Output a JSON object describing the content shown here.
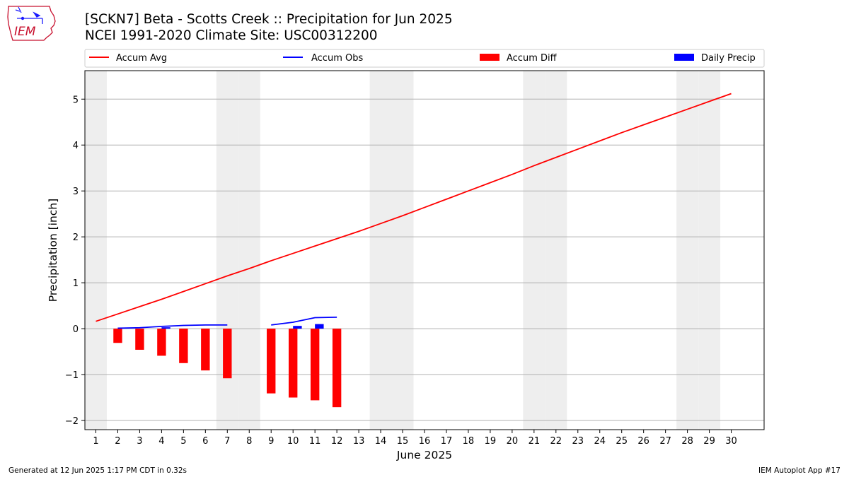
{
  "title_line1": "[SCKN7] Beta - Scotts Creek :: Precipitation for Jun 2025",
  "title_line2": "NCEI 1991-2020 Climate Site: USC00312200",
  "logo_text": "IEM",
  "footer_left": "Generated at 12 Jun 2025 1:17 PM CDT in 0.32s",
  "footer_right": "IEM Autoplot App #17",
  "colors": {
    "accum_avg": "#ff0000",
    "accum_obs": "#0000ff",
    "accum_diff": "#ff0000",
    "daily_precip": "#0000ff",
    "weekend_band": "#eeeeee",
    "grid": "#b0b0b0"
  },
  "chart_data": {
    "type": "bar",
    "xlabel": "June 2025",
    "ylabel": "Precipitation [inch]",
    "xlim": [
      0.5,
      31.5
    ],
    "ylim": [
      -2.2,
      5.62
    ],
    "yticks": [
      -2,
      -1,
      0,
      1,
      2,
      3,
      4,
      5
    ],
    "ytick_labels": [
      "−2",
      "−1",
      "0",
      "1",
      "2",
      "3",
      "4",
      "5"
    ],
    "days": [
      1,
      2,
      3,
      4,
      5,
      6,
      7,
      8,
      9,
      10,
      11,
      12,
      13,
      14,
      15,
      16,
      17,
      18,
      19,
      20,
      21,
      22,
      23,
      24,
      25,
      26,
      27,
      28,
      29,
      30
    ],
    "grid": true,
    "legend_position": "top",
    "weekend_days": [
      1,
      7,
      8,
      14,
      15,
      21,
      22,
      28,
      29
    ],
    "series": [
      {
        "name": "Accum Avg",
        "kind": "line",
        "x": [
          1,
          2,
          3,
          4,
          5,
          6,
          7,
          8,
          9,
          10,
          11,
          12,
          13,
          14,
          15,
          16,
          17,
          18,
          19,
          20,
          21,
          22,
          23,
          24,
          25,
          26,
          27,
          28,
          29,
          30
        ],
        "values": [
          0.16,
          0.32,
          0.48,
          0.64,
          0.81,
          0.98,
          1.15,
          1.31,
          1.48,
          1.64,
          1.8,
          1.96,
          2.12,
          2.29,
          2.46,
          2.64,
          2.82,
          3.0,
          3.18,
          3.36,
          3.55,
          3.73,
          3.91,
          4.09,
          4.27,
          4.44,
          4.61,
          4.78,
          4.95,
          5.12
        ]
      },
      {
        "name": "Accum Obs",
        "kind": "line",
        "segments": [
          {
            "x": [
              2,
              3,
              4,
              5,
              6,
              7
            ],
            "values": [
              0.01,
              0.02,
              0.05,
              0.07,
              0.08,
              0.08
            ]
          },
          {
            "x": [
              9,
              10,
              11,
              12
            ],
            "values": [
              0.08,
              0.14,
              0.24,
              0.25
            ]
          }
        ]
      },
      {
        "name": "Accum Diff",
        "kind": "bar",
        "x": [
          2,
          3,
          4,
          5,
          6,
          7,
          9,
          10,
          11,
          12
        ],
        "values": [
          -0.31,
          -0.46,
          -0.59,
          -0.75,
          -0.91,
          -1.08,
          -1.41,
          -1.5,
          -1.56,
          -1.71
        ]
      },
      {
        "name": "Daily Precip",
        "kind": "bar",
        "x": [
          4,
          10,
          11
        ],
        "values": [
          0.03,
          0.06,
          0.1
        ]
      }
    ]
  }
}
